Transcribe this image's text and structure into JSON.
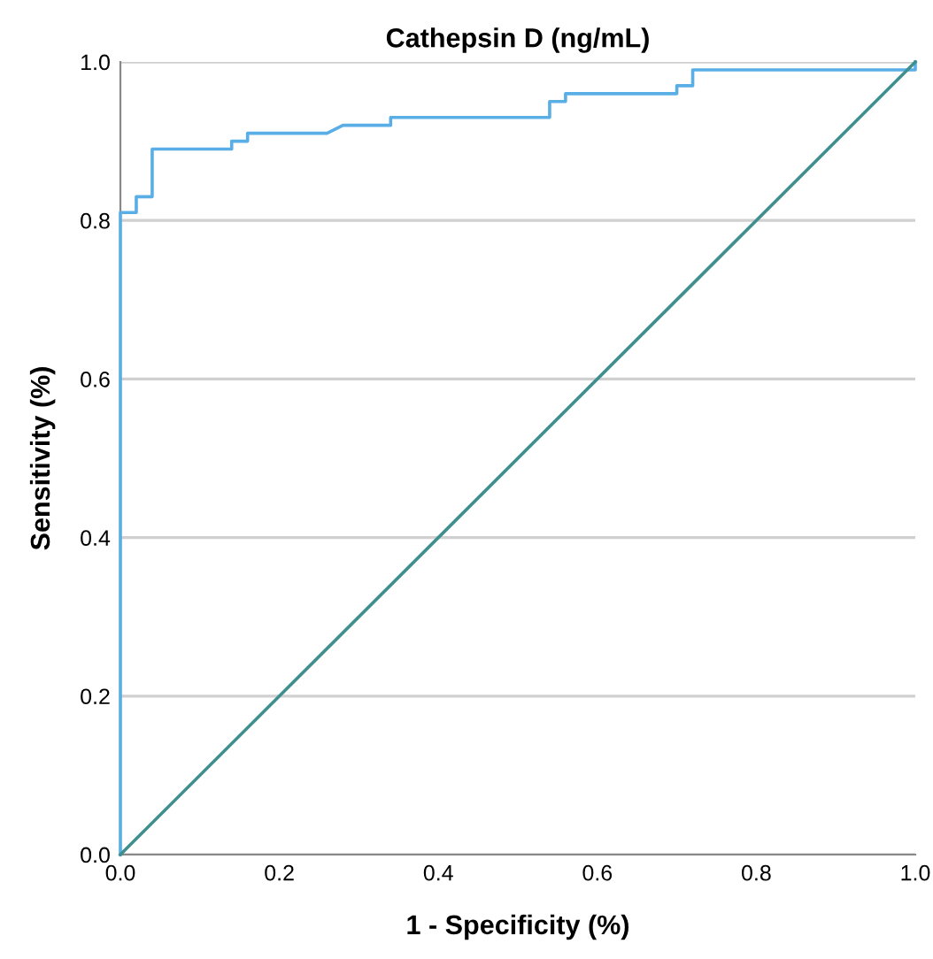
{
  "chart_data": {
    "type": "line",
    "title": "Cathepsin D (ng/mL)",
    "xlabel": "1 - Specificity (%)",
    "ylabel": "Sensitivity (%)",
    "series": [
      {
        "color": "#5aaee6",
        "x": [
          0,
          0,
          0.02,
          0.02,
          0.04,
          0.04,
          0.14,
          0.14,
          0.16,
          0.16,
          0.26,
          0.28,
          0.34,
          0.34,
          0.54,
          0.54,
          0.56,
          0.56,
          0.7,
          0.7,
          0.72,
          0.72,
          1.0,
          1.0
        ],
        "values": [
          0,
          0.81,
          0.81,
          0.83,
          0.83,
          0.89,
          0.89,
          0.9,
          0.9,
          0.91,
          0.91,
          0.92,
          0.92,
          0.93,
          0.93,
          0.95,
          0.95,
          0.96,
          0.96,
          0.97,
          0.97,
          0.99,
          0.99,
          1.0
        ]
      },
      {
        "color": "#3f8f8f",
        "x": [
          0,
          1
        ],
        "values": [
          0,
          1
        ]
      }
    ],
    "xlim": [
      0,
      1
    ],
    "ylim": [
      0,
      1
    ],
    "xticks": [
      {
        "value": 0,
        "label": "0.0"
      },
      {
        "value": 0.2,
        "label": "0.2"
      },
      {
        "value": 0.4,
        "label": "0.4"
      },
      {
        "value": 0.6,
        "label": "0.6"
      },
      {
        "value": 0.8,
        "label": "0.8"
      },
      {
        "value": 1,
        "label": "1.0"
      }
    ],
    "yticks": [
      {
        "value": 0,
        "label": "0.0"
      },
      {
        "value": 0.2,
        "label": "0.2"
      },
      {
        "value": 0.4,
        "label": "0.4"
      },
      {
        "value": 0.6,
        "label": "0.6"
      },
      {
        "value": 0.8,
        "label": "0.8"
      },
      {
        "value": 1,
        "label": "1.0"
      }
    ],
    "grid": "y",
    "marker": "none",
    "line_style": "solid"
  }
}
